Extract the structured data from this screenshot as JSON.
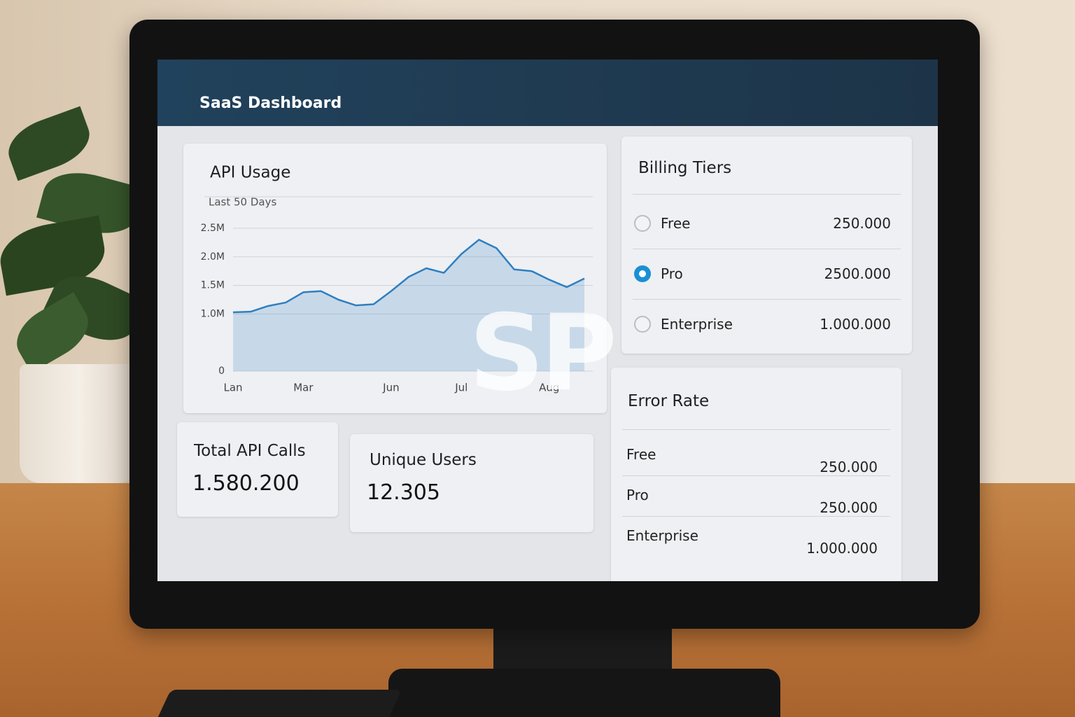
{
  "header": {
    "title": "SaaS Dashboard"
  },
  "chart_data": {
    "type": "area",
    "title": "API Usage",
    "subtitle": "Last 50 Days",
    "categories": [
      "Lan",
      null,
      null,
      null,
      "Mar",
      null,
      null,
      null,
      null,
      "Jun",
      null,
      null,
      null,
      "Jul",
      null,
      null,
      null,
      null,
      "Aug",
      null,
      null
    ],
    "values": [
      1030000,
      1040000,
      1140000,
      1200000,
      1380000,
      1400000,
      1250000,
      1150000,
      1170000,
      1400000,
      1650000,
      1800000,
      1720000,
      2050000,
      2300000,
      2150000,
      1780000,
      1750000,
      1600000,
      1470000,
      1620000
    ],
    "color": "#2f7fc1",
    "ylim": [
      0,
      2500000
    ],
    "yticks": [
      0,
      {
        "value": 1000000,
        "label": "1.0M"
      },
      {
        "value": 1500000,
        "label": "1.5M"
      },
      {
        "value": 2000000,
        "label": "2.0M"
      },
      {
        "value": 2500000,
        "label": "2.5M"
      }
    ],
    "grid": true
  },
  "billing_tiers": {
    "title": "Billing Tiers",
    "rows": [
      {
        "name": "Free",
        "value": "250.000",
        "selected": false
      },
      {
        "name": "Pro",
        "value": "2500.000",
        "selected": true
      },
      {
        "name": "Enterprise",
        "value": "1.000.000",
        "selected": false
      }
    ]
  },
  "stats": [
    {
      "label": "Total API Calls",
      "value": "1.580.200"
    },
    {
      "label": "Unique Users",
      "value": "12.305"
    }
  ],
  "error_rate": {
    "title": "Error Rate",
    "rows": [
      {
        "name": "Free",
        "value": "250.000"
      },
      {
        "name": "Pro",
        "value": "250.000"
      },
      {
        "name": "Enterprise",
        "value": "1.000.000"
      }
    ]
  },
  "watermark": "SP"
}
